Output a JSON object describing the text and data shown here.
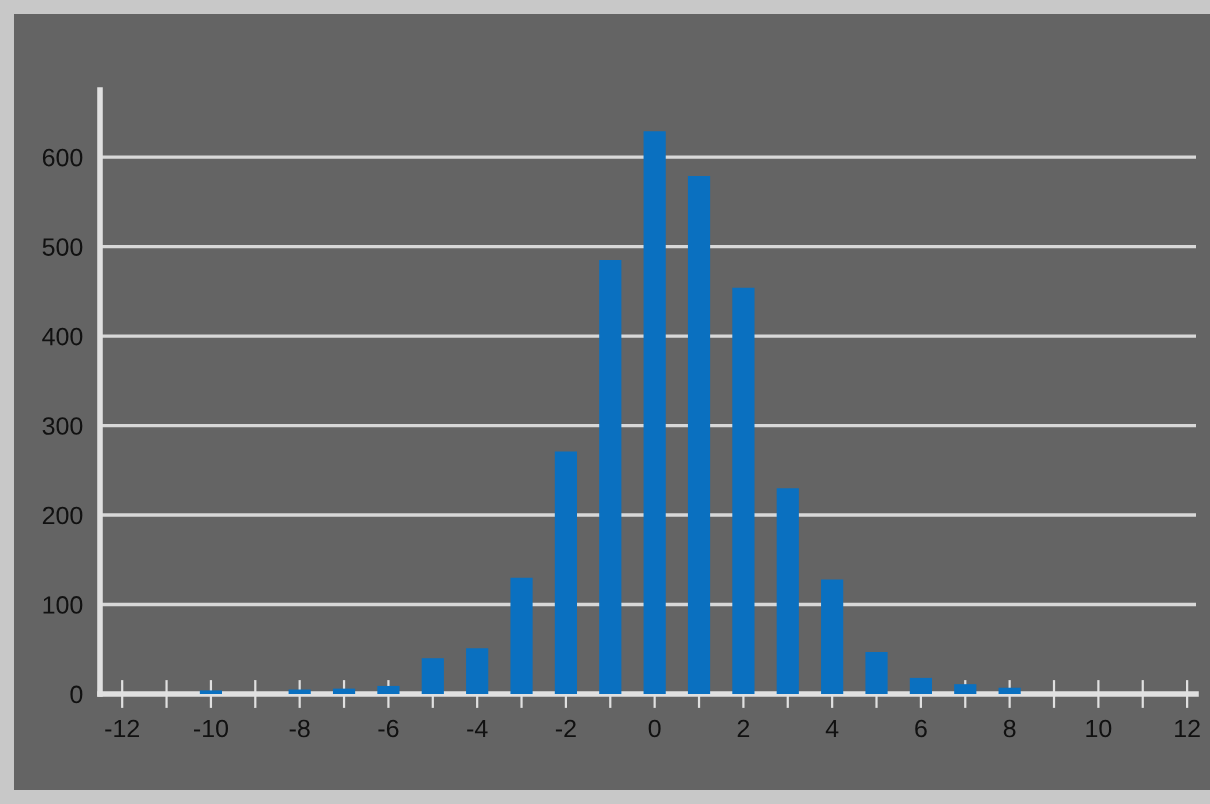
{
  "chart_data": {
    "type": "bar",
    "x": [
      -10,
      -9,
      -8,
      -7,
      -6,
      -5,
      -4,
      -3,
      -2,
      -1,
      0,
      1,
      2,
      3,
      4,
      5,
      6,
      7,
      8
    ],
    "values": [
      4,
      0,
      5,
      6,
      9,
      40,
      51,
      130,
      271,
      485,
      629,
      579,
      454,
      230,
      128,
      47,
      18,
      11,
      7
    ],
    "color": "#0a70c0",
    "xlim": [
      -12.5,
      12.2
    ],
    "xticks": [
      -12,
      {
        "value": -11,
        "label": null
      },
      -10,
      {
        "value": -9,
        "label": null
      },
      -8,
      {
        "value": -7,
        "label": null
      },
      -6,
      {
        "value": -5,
        "label": null
      },
      -4,
      {
        "value": -3,
        "label": null
      },
      -2,
      {
        "value": -1,
        "label": null
      },
      0,
      {
        "value": 1,
        "label": null
      },
      2,
      {
        "value": 3,
        "label": null
      },
      4,
      {
        "value": 5,
        "label": null
      },
      6,
      {
        "value": 7,
        "label": null
      },
      8,
      {
        "value": 9,
        "label": null
      },
      10,
      {
        "value": 11,
        "label": null
      },
      12
    ],
    "ylim": [
      0,
      675
    ],
    "yticks": [
      0,
      100,
      200,
      300,
      400,
      500,
      600
    ],
    "grid": "y"
  }
}
